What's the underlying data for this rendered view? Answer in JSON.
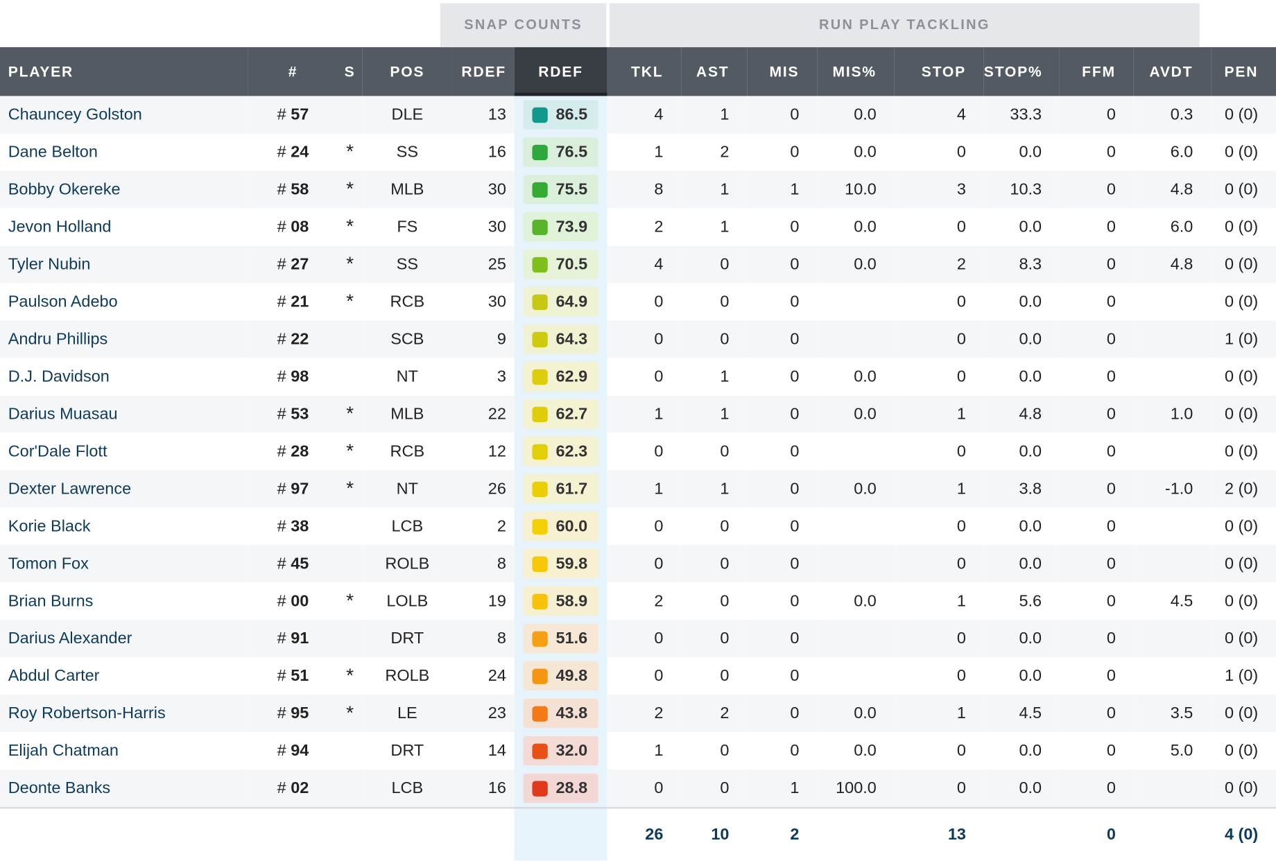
{
  "groups": {
    "snap_counts": "SNAP COUNTS",
    "run_play_tackling": "RUN PLAY TACKLING"
  },
  "headers": {
    "player": "PLAYER",
    "number": "#",
    "starter": "S",
    "pos": "POS",
    "rdef_snaps": "RDEF",
    "rdef_grade": "RDEF",
    "tkl": "TKL",
    "ast": "AST",
    "mis": "MIS",
    "mis_pct": "MIS%",
    "stop": "STOP",
    "stop_pct": "STOP%",
    "ffm": "FFM",
    "avdt": "AVDT",
    "pen": "PEN"
  },
  "rows": [
    {
      "player": "Chauncey Golston",
      "hash": "#",
      "jersey": "57",
      "starter": "",
      "pos": "DLE",
      "snaps": "13",
      "grade": "86.5",
      "grade_color": "#0f9a8c",
      "grade_bg": "#d4ecec",
      "tkl": "4",
      "ast": "1",
      "mis": "0",
      "mis_pct": "0.0",
      "stop": "4",
      "stop_pct": "33.3",
      "ffm": "0",
      "avdt": "0.3",
      "pen": "0 (0)"
    },
    {
      "player": "Dane Belton",
      "hash": "#",
      "jersey": "24",
      "starter": "*",
      "pos": "SS",
      "snaps": "16",
      "grade": "76.5",
      "grade_color": "#2ea83a",
      "grade_bg": "#d9efdb",
      "tkl": "1",
      "ast": "2",
      "mis": "0",
      "mis_pct": "0.0",
      "stop": "0",
      "stop_pct": "0.0",
      "ffm": "0",
      "avdt": "6.0",
      "pen": "0 (0)"
    },
    {
      "player": "Bobby Okereke",
      "hash": "#",
      "jersey": "58",
      "starter": "*",
      "pos": "MLB",
      "snaps": "30",
      "grade": "75.5",
      "grade_color": "#35ab33",
      "grade_bg": "#dbf0da",
      "tkl": "8",
      "ast": "1",
      "mis": "1",
      "mis_pct": "10.0",
      "stop": "3",
      "stop_pct": "10.3",
      "ffm": "0",
      "avdt": "4.8",
      "pen": "0 (0)"
    },
    {
      "player": "Jevon Holland",
      "hash": "#",
      "jersey": "08",
      "starter": "*",
      "pos": "FS",
      "snaps": "30",
      "grade": "73.9",
      "grade_color": "#58b52a",
      "grade_bg": "#e0f2d8",
      "tkl": "2",
      "ast": "1",
      "mis": "0",
      "mis_pct": "0.0",
      "stop": "0",
      "stop_pct": "0.0",
      "ffm": "0",
      "avdt": "6.0",
      "pen": "0 (0)"
    },
    {
      "player": "Tyler Nubin",
      "hash": "#",
      "jersey": "27",
      "starter": "*",
      "pos": "SS",
      "snaps": "25",
      "grade": "70.5",
      "grade_color": "#7ebf1c",
      "grade_bg": "#e6f3d6",
      "tkl": "4",
      "ast": "0",
      "mis": "0",
      "mis_pct": "0.0",
      "stop": "2",
      "stop_pct": "8.3",
      "ffm": "0",
      "avdt": "4.8",
      "pen": "0 (0)"
    },
    {
      "player": "Paulson Adebo",
      "hash": "#",
      "jersey": "21",
      "starter": "*",
      "pos": "RCB",
      "snaps": "30",
      "grade": "64.9",
      "grade_color": "#c6c814",
      "grade_bg": "#eff2d3",
      "tkl": "0",
      "ast": "0",
      "mis": "0",
      "mis_pct": "",
      "stop": "0",
      "stop_pct": "0.0",
      "ffm": "0",
      "avdt": "",
      "pen": "0 (0)"
    },
    {
      "player": "Andru Phillips",
      "hash": "#",
      "jersey": "22",
      "starter": "",
      "pos": "SCB",
      "snaps": "9",
      "grade": "64.3",
      "grade_color": "#cccb10",
      "grade_bg": "#f0f2d2",
      "tkl": "0",
      "ast": "0",
      "mis": "0",
      "mis_pct": "",
      "stop": "0",
      "stop_pct": "0.0",
      "ffm": "0",
      "avdt": "",
      "pen": "1 (0)"
    },
    {
      "player": "D.J. Davidson",
      "hash": "#",
      "jersey": "98",
      "starter": "",
      "pos": "NT",
      "snaps": "3",
      "grade": "62.9",
      "grade_color": "#ddcd0a",
      "grade_bg": "#f3f2d1",
      "tkl": "0",
      "ast": "1",
      "mis": "0",
      "mis_pct": "0.0",
      "stop": "0",
      "stop_pct": "0.0",
      "ffm": "0",
      "avdt": "",
      "pen": "0 (0)"
    },
    {
      "player": "Darius Muasau",
      "hash": "#",
      "jersey": "53",
      "starter": "*",
      "pos": "MLB",
      "snaps": "22",
      "grade": "62.7",
      "grade_color": "#dfcd09",
      "grade_bg": "#f3f2d1",
      "tkl": "1",
      "ast": "1",
      "mis": "0",
      "mis_pct": "0.0",
      "stop": "1",
      "stop_pct": "4.8",
      "ffm": "0",
      "avdt": "1.0",
      "pen": "0 (0)"
    },
    {
      "player": "Cor'Dale Flott",
      "hash": "#",
      "jersey": "28",
      "starter": "*",
      "pos": "RCB",
      "snaps": "12",
      "grade": "62.3",
      "grade_color": "#e3cf08",
      "grade_bg": "#f4f2d1",
      "tkl": "0",
      "ast": "0",
      "mis": "0",
      "mis_pct": "",
      "stop": "0",
      "stop_pct": "0.0",
      "ffm": "0",
      "avdt": "",
      "pen": "0 (0)"
    },
    {
      "player": "Dexter Lawrence",
      "hash": "#",
      "jersey": "97",
      "starter": "*",
      "pos": "NT",
      "snaps": "26",
      "grade": "61.7",
      "grade_color": "#ebcf06",
      "grade_bg": "#f5f2d1",
      "tkl": "1",
      "ast": "1",
      "mis": "0",
      "mis_pct": "0.0",
      "stop": "1",
      "stop_pct": "3.8",
      "ffm": "0",
      "avdt": "-1.0",
      "pen": "2 (0)"
    },
    {
      "player": "Korie Black",
      "hash": "#",
      "jersey": "38",
      "starter": "",
      "pos": "LCB",
      "snaps": "2",
      "grade": "60.0",
      "grade_color": "#f5cf05",
      "grade_bg": "#f7f1d1",
      "tkl": "0",
      "ast": "0",
      "mis": "0",
      "mis_pct": "",
      "stop": "0",
      "stop_pct": "0.0",
      "ffm": "0",
      "avdt": "",
      "pen": "0 (0)"
    },
    {
      "player": "Tomon Fox",
      "hash": "#",
      "jersey": "45",
      "starter": "",
      "pos": "ROLB",
      "snaps": "8",
      "grade": "59.8",
      "grade_color": "#f6c806",
      "grade_bg": "#f7f0d1",
      "tkl": "0",
      "ast": "0",
      "mis": "0",
      "mis_pct": "",
      "stop": "0",
      "stop_pct": "0.0",
      "ffm": "0",
      "avdt": "",
      "pen": "0 (0)"
    },
    {
      "player": "Brian Burns",
      "hash": "#",
      "jersey": "00",
      "starter": "*",
      "pos": "LOLB",
      "snaps": "19",
      "grade": "58.9",
      "grade_color": "#f6c30a",
      "grade_bg": "#f7efd1",
      "tkl": "2",
      "ast": "0",
      "mis": "0",
      "mis_pct": "0.0",
      "stop": "1",
      "stop_pct": "5.6",
      "ffm": "0",
      "avdt": "4.5",
      "pen": "0 (0)"
    },
    {
      "player": "Darius Alexander",
      "hash": "#",
      "jersey": "91",
      "starter": "",
      "pos": "DRT",
      "snaps": "8",
      "grade": "51.6",
      "grade_color": "#f59f12",
      "grade_bg": "#f6e8d4",
      "tkl": "0",
      "ast": "0",
      "mis": "0",
      "mis_pct": "",
      "stop": "0",
      "stop_pct": "0.0",
      "ffm": "0",
      "avdt": "",
      "pen": "0 (0)"
    },
    {
      "player": "Abdul Carter",
      "hash": "#",
      "jersey": "51",
      "starter": "*",
      "pos": "ROLB",
      "snaps": "24",
      "grade": "49.8",
      "grade_color": "#f59611",
      "grade_bg": "#f6e6d4",
      "tkl": "0",
      "ast": "0",
      "mis": "0",
      "mis_pct": "",
      "stop": "0",
      "stop_pct": "0.0",
      "ffm": "0",
      "avdt": "",
      "pen": "1 (0)"
    },
    {
      "player": "Roy Robertson-Harris",
      "hash": "#",
      "jersey": "95",
      "starter": "*",
      "pos": "LE",
      "snaps": "23",
      "grade": "43.8",
      "grade_color": "#f37a14",
      "grade_bg": "#f5e0d4",
      "tkl": "2",
      "ast": "2",
      "mis": "0",
      "mis_pct": "0.0",
      "stop": "1",
      "stop_pct": "4.5",
      "ffm": "0",
      "avdt": "3.5",
      "pen": "0 (0)"
    },
    {
      "player": "Elijah Chatman",
      "hash": "#",
      "jersey": "94",
      "starter": "",
      "pos": "DRT",
      "snaps": "14",
      "grade": "32.0",
      "grade_color": "#e95016",
      "grade_bg": "#f3dad4",
      "tkl": "1",
      "ast": "0",
      "mis": "0",
      "mis_pct": "0.0",
      "stop": "0",
      "stop_pct": "0.0",
      "ffm": "0",
      "avdt": "5.0",
      "pen": "0 (0)"
    },
    {
      "player": "Deonte Banks",
      "hash": "#",
      "jersey": "02",
      "starter": "",
      "pos": "LCB",
      "snaps": "16",
      "grade": "28.8",
      "grade_color": "#df3a1a",
      "grade_bg": "#f2d7d4",
      "tkl": "0",
      "ast": "0",
      "mis": "1",
      "mis_pct": "100.0",
      "stop": "0",
      "stop_pct": "0.0",
      "ffm": "0",
      "avdt": "",
      "pen": "0 (0)"
    }
  ],
  "totals": {
    "tkl": "26",
    "ast": "10",
    "mis": "2",
    "stop": "13",
    "ffm": "0",
    "pen": "4 (0)"
  }
}
